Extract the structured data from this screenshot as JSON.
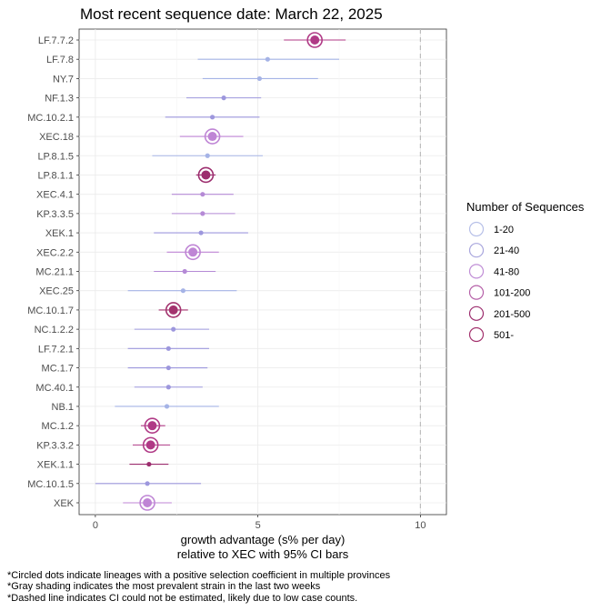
{
  "chart_data": {
    "type": "scatter",
    "title": "Most recent sequence date: March 22, 2025",
    "xlabel_line1": "growth advantage (s% per day)",
    "xlabel_line2": "relative to  XEC  with 95% CI bars",
    "xlim": [
      -0.5,
      10.8
    ],
    "xticks": [
      0,
      5,
      10
    ],
    "reference_line_x": 10,
    "grid": true,
    "legend_position": "right",
    "legend": {
      "title": "Number of Sequences",
      "entries": [
        {
          "label": "1-20",
          "color": "#b7c0e8"
        },
        {
          "label": "21-40",
          "color": "#a9a6dd"
        },
        {
          "label": "41-80",
          "color": "#c08ed6"
        },
        {
          "label": "101-200",
          "color": "#b55fa8"
        },
        {
          "label": "201-500",
          "color": "#9c2d6e"
        },
        {
          "label": "501-",
          "color": "#a3336e"
        }
      ]
    },
    "lineages": [
      {
        "name": "LF.7.7.2",
        "value": 6.75,
        "ci": [
          5.8,
          7.7
        ],
        "color": "#b03a86",
        "circled": true,
        "big": true
      },
      {
        "name": "LF.7.8",
        "value": 5.3,
        "ci": [
          3.15,
          7.5
        ],
        "color": "#a5b3e6",
        "circled": false,
        "big": false
      },
      {
        "name": "NY.7",
        "value": 5.05,
        "ci": [
          3.3,
          6.85
        ],
        "color": "#a5b3e6",
        "circled": false,
        "big": false
      },
      {
        "name": "NF.1.3",
        "value": 3.95,
        "ci": [
          2.8,
          5.1
        ],
        "color": "#9d97dd",
        "circled": false,
        "big": false
      },
      {
        "name": "MC.10.2.1",
        "value": 3.6,
        "ci": [
          2.15,
          5.05
        ],
        "color": "#9d97dd",
        "circled": false,
        "big": false
      },
      {
        "name": "XEC.18",
        "value": 3.6,
        "ci": [
          2.6,
          4.55
        ],
        "color": "#bf85d5",
        "circled": true,
        "big": false
      },
      {
        "name": "LP.8.1.5",
        "value": 3.45,
        "ci": [
          1.75,
          5.15
        ],
        "color": "#a5b3e6",
        "circled": false,
        "big": false
      },
      {
        "name": "LP.8.1.1",
        "value": 3.4,
        "ci": [
          3.1,
          3.7
        ],
        "color": "#9c2d6e",
        "circled": true,
        "big": true
      },
      {
        "name": "XEC.4.1",
        "value": 3.3,
        "ci": [
          2.35,
          4.25
        ],
        "color": "#b58ad6",
        "circled": false,
        "big": false
      },
      {
        "name": "KP.3.3.5",
        "value": 3.3,
        "ci": [
          2.35,
          4.3
        ],
        "color": "#b58ad6",
        "circled": false,
        "big": false
      },
      {
        "name": "XEK.1",
        "value": 3.25,
        "ci": [
          1.8,
          4.7
        ],
        "color": "#9d97dd",
        "circled": false,
        "big": false
      },
      {
        "name": "XEC.2.2",
        "value": 3.0,
        "ci": [
          2.2,
          3.8
        ],
        "color": "#bf85d5",
        "circled": true,
        "big": false
      },
      {
        "name": "MC.21.1",
        "value": 2.75,
        "ci": [
          1.8,
          3.7
        ],
        "color": "#b58ad6",
        "circled": false,
        "big": false
      },
      {
        "name": "XEC.25",
        "value": 2.7,
        "ci": [
          1.0,
          4.35
        ],
        "color": "#a5b3e6",
        "circled": false,
        "big": false
      },
      {
        "name": "MC.10.1.7",
        "value": 2.4,
        "ci": [
          1.95,
          2.85
        ],
        "color": "#a3336e",
        "circled": true,
        "big": true
      },
      {
        "name": "NC.1.2.2",
        "value": 2.4,
        "ci": [
          1.2,
          3.5
        ],
        "color": "#9d97dd",
        "circled": false,
        "big": false
      },
      {
        "name": "LF.7.2.1",
        "value": 2.25,
        "ci": [
          1.0,
          3.5
        ],
        "color": "#9d97dd",
        "circled": false,
        "big": false
      },
      {
        "name": "MC.1.7",
        "value": 2.25,
        "ci": [
          1.0,
          3.45
        ],
        "color": "#9d97dd",
        "circled": false,
        "big": false
      },
      {
        "name": "MC.40.1",
        "value": 2.25,
        "ci": [
          1.2,
          3.3
        ],
        "color": "#9d97dd",
        "circled": false,
        "big": false
      },
      {
        "name": "NB.1",
        "value": 2.2,
        "ci": [
          0.6,
          3.8
        ],
        "color": "#a5b3e6",
        "circled": false,
        "big": false
      },
      {
        "name": "MC.1.2",
        "value": 1.75,
        "ci": [
          1.4,
          2.15
        ],
        "color": "#b03a86",
        "circled": true,
        "big": true
      },
      {
        "name": "KP.3.3.2",
        "value": 1.7,
        "ci": [
          1.15,
          2.3
        ],
        "color": "#b03a86",
        "circled": true,
        "big": true
      },
      {
        "name": "XEK.1.1",
        "value": 1.65,
        "ci": [
          1.05,
          2.25
        ],
        "color": "#9c2d6e",
        "circled": false,
        "big": false
      },
      {
        "name": "MC.10.1.5",
        "value": 1.6,
        "ci": [
          0.0,
          3.25
        ],
        "color": "#9d97dd",
        "circled": false,
        "big": false
      },
      {
        "name": "XEK",
        "value": 1.6,
        "ci": [
          0.85,
          2.35
        ],
        "color": "#bf85d5",
        "circled": true,
        "big": false
      }
    ]
  },
  "footnotes": [
    "*Circled dots indicate lineages with a positive selection coefficient in multiple provinces",
    "*Gray shading indicates the most prevalent strain in the last two weeks",
    "*Dashed line indicates CI could not be estimated, likely due to low case counts."
  ]
}
